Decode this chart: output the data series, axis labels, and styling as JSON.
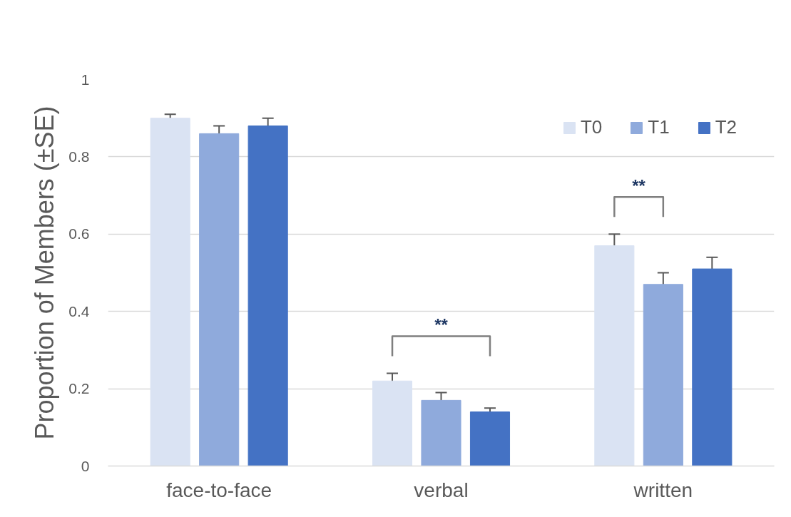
{
  "chart_data": {
    "type": "bar",
    "ylabel": "Proportion of Members (±SE)",
    "categories": [
      "face-to-face",
      "verbal",
      "written"
    ],
    "series": [
      {
        "name": "T0",
        "color": "#dae3f3",
        "values": [
          0.9,
          0.22,
          0.57
        ],
        "errors": [
          0.01,
          0.02,
          0.03
        ]
      },
      {
        "name": "T1",
        "color": "#8faadc",
        "values": [
          0.86,
          0.17,
          0.47
        ],
        "errors": [
          0.02,
          0.02,
          0.03
        ]
      },
      {
        "name": "T2",
        "color": "#4472c4",
        "values": [
          0.88,
          0.14,
          0.51
        ],
        "errors": [
          0.02,
          0.01,
          0.03
        ]
      }
    ],
    "ylim": [
      0,
      1
    ],
    "yticks": [
      0,
      0.2,
      0.4,
      0.6,
      0.8,
      1
    ],
    "grid": "y",
    "legend": "top right",
    "annotations": [
      "**",
      "**"
    ]
  }
}
